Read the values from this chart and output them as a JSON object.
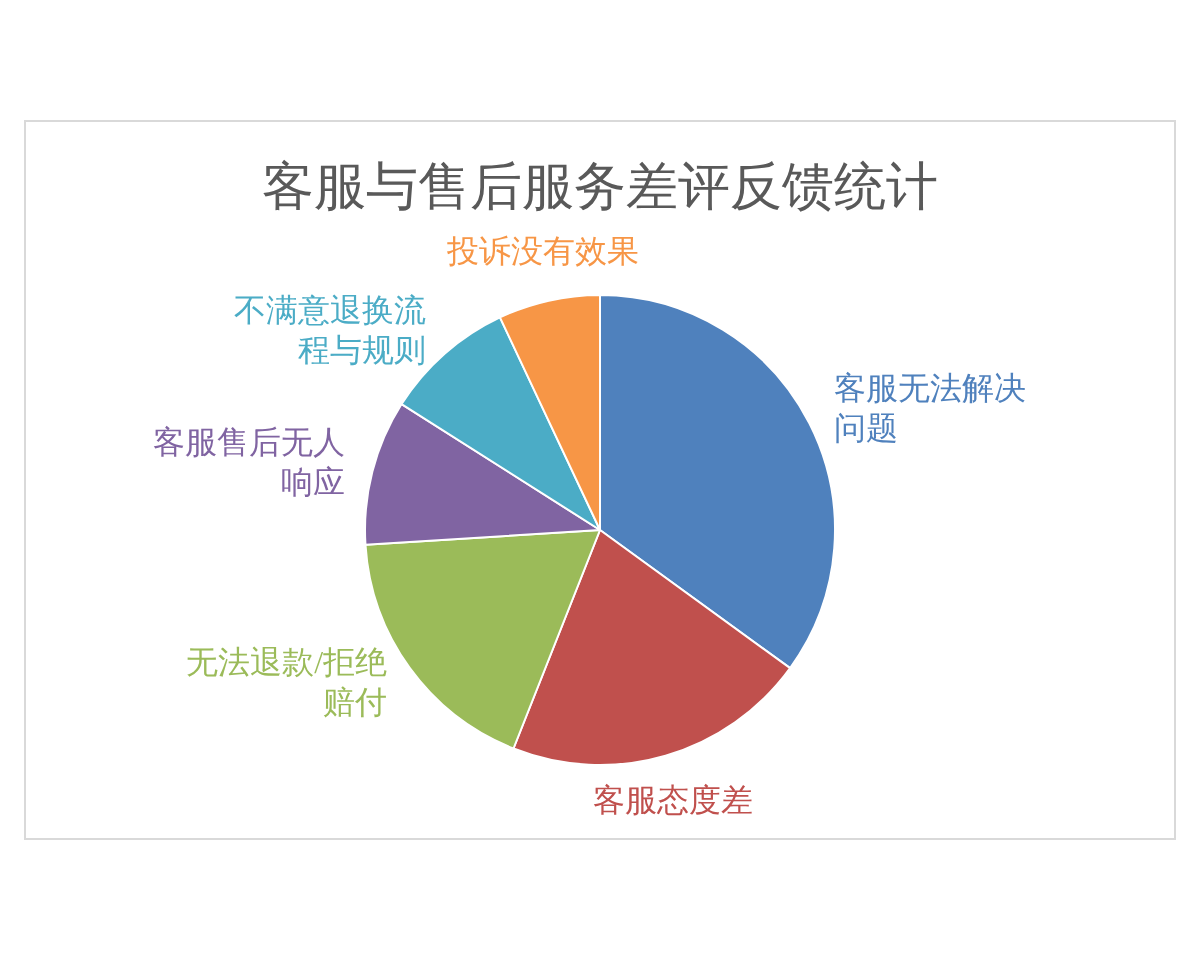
{
  "chart_data": {
    "type": "pie",
    "title": "客服与售后服务差评反馈统计",
    "categories": [
      "客服无法解决问题",
      "客服态度差",
      "无法退款/拒绝赔付",
      "客服售后无人响应",
      "不满意退换流程与规则",
      "投诉没有效果"
    ],
    "values": [
      35,
      21,
      18,
      10,
      9,
      7
    ],
    "colors": [
      "#4f81bd",
      "#c0504d",
      "#9bbb59",
      "#8064a2",
      "#4bacc6",
      "#f79646"
    ],
    "legend": false
  }
}
